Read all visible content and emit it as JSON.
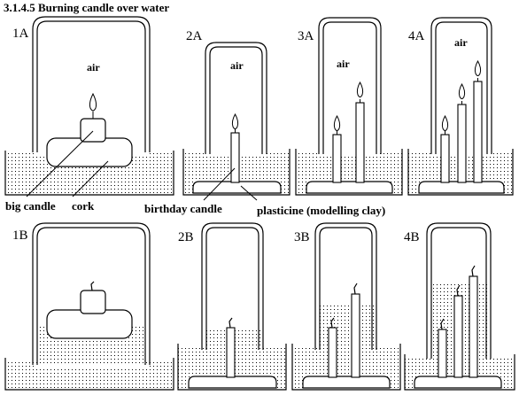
{
  "title": "3.1.4.5  Burning candle over water",
  "panels": {
    "1A": "1A",
    "2A": "2A",
    "3A": "3A",
    "4A": "4A",
    "1B": "1B",
    "2B": "2B",
    "3B": "3B",
    "4B": "4B"
  },
  "air_label": "air",
  "annotations": {
    "big_candle": "big candle",
    "cork": "cork",
    "birthday_candle": "birthday candle",
    "plasticine": "plasticine (modelling clay)"
  }
}
